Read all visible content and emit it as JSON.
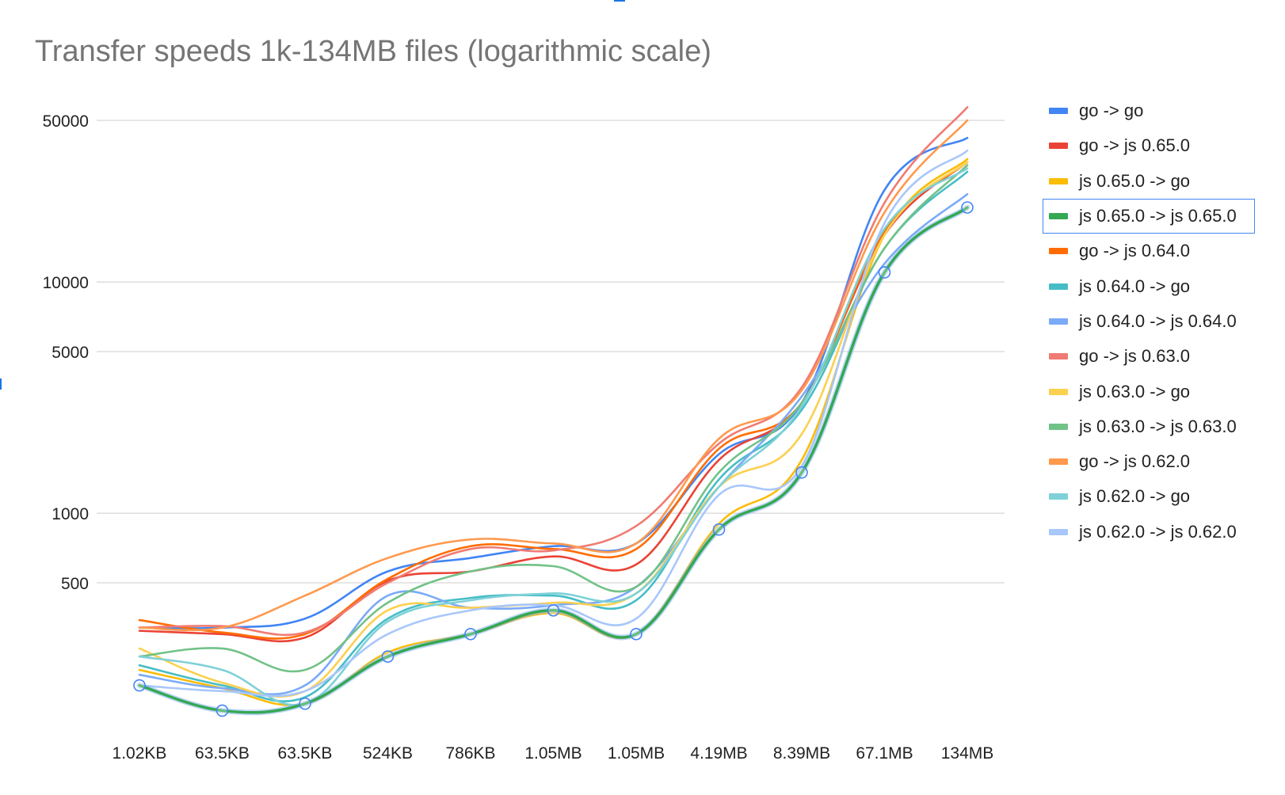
{
  "chart_data": {
    "type": "line",
    "title": "Transfer speeds 1k-134MB files (logarithmic scale)",
    "xlabel": "",
    "ylabel": "",
    "y_scale": "log",
    "ylim": [
      130,
      62000
    ],
    "y_ticks": [
      500,
      1000,
      5000,
      10000,
      50000
    ],
    "grid": true,
    "legend_position": "right",
    "categories": [
      "1.02KB",
      "63.5KB",
      "63.5KB",
      "524KB",
      "786KB",
      "1.05MB",
      "1.05MB",
      "4.19MB",
      "8.39MB",
      "67.1MB",
      "134MB"
    ],
    "selected_series": "js 0.65.0 -> js 0.65.0",
    "series": [
      {
        "name": "go -> go",
        "color": "#4285f4",
        "values": [
          320,
          320,
          350,
          560,
          640,
          720,
          740,
          1800,
          3000,
          25000,
          42000
        ]
      },
      {
        "name": "go -> js 0.65.0",
        "color": "#ea4335",
        "values": [
          310,
          300,
          290,
          510,
          560,
          650,
          600,
          1700,
          3000,
          16000,
          33000
        ]
      },
      {
        "name": "js 0.65.0 -> go",
        "color": "#fbbc04",
        "values": [
          210,
          175,
          150,
          250,
          300,
          370,
          300,
          900,
          1700,
          16000,
          34000
        ]
      },
      {
        "name": "js 0.65.0 -> js 0.65.0",
        "color": "#34a853",
        "values": [
          180,
          140,
          150,
          240,
          300,
          380,
          300,
          850,
          1500,
          11000,
          21000
        ]
      },
      {
        "name": "go -> js 0.64.0",
        "color": "#ff6d01",
        "values": [
          345,
          305,
          300,
          520,
          720,
          700,
          700,
          1900,
          3000,
          16500,
          33000
        ]
      },
      {
        "name": "js 0.64.0 -> go",
        "color": "#46bdc6",
        "values": [
          220,
          180,
          160,
          350,
          430,
          440,
          420,
          1400,
          2800,
          14000,
          30000
        ]
      },
      {
        "name": "js 0.64.0 -> js 0.64.0",
        "color": "#7baaf7",
        "values": [
          200,
          175,
          180,
          440,
          390,
          400,
          480,
          1300,
          3200,
          12000,
          24000
        ]
      },
      {
        "name": "go -> js 0.63.0",
        "color": "#f07b72",
        "values": [
          320,
          325,
          305,
          500,
          700,
          690,
          880,
          2000,
          3500,
          22000,
          57000
        ]
      },
      {
        "name": "js 0.63.0 -> go",
        "color": "#fcd04f",
        "values": [
          260,
          185,
          170,
          380,
          390,
          410,
          450,
          1300,
          2200,
          16000,
          33000
        ]
      },
      {
        "name": "js 0.63.0 -> js 0.63.0",
        "color": "#71c287",
        "values": [
          240,
          260,
          210,
          410,
          560,
          590,
          480,
          1500,
          3000,
          14000,
          32000
        ]
      },
      {
        "name": "go -> js 0.62.0",
        "color": "#ff994d",
        "values": [
          320,
          320,
          440,
          640,
          770,
          740,
          740,
          2100,
          3400,
          20000,
          50000
        ]
      },
      {
        "name": "js 0.62.0 -> go",
        "color": "#7ed1d7",
        "values": [
          240,
          210,
          150,
          340,
          420,
          450,
          450,
          1300,
          2900,
          17000,
          31000
        ]
      },
      {
        "name": "js 0.62.0 -> js 0.62.0",
        "color": "#a8c7fa",
        "values": [
          180,
          170,
          170,
          300,
          380,
          400,
          350,
          1200,
          1600,
          18000,
          37000
        ]
      }
    ]
  }
}
